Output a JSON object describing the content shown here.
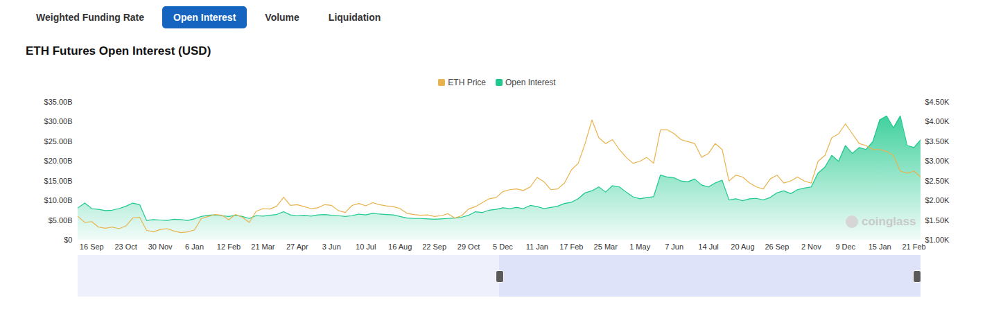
{
  "tabs": [
    "Weighted Funding Rate",
    "Open Interest",
    "Volume",
    "Liquidation"
  ],
  "active_tab": "Open Interest",
  "watermark": "coinglass",
  "chart_data": {
    "type": "line",
    "title": "ETH Futures Open Interest (USD)",
    "legend": "top",
    "grid": false,
    "categories": [
      null,
      null,
      "16 Sep",
      null,
      null,
      null,
      null,
      "23 Oct",
      null,
      null,
      null,
      null,
      "30 Nov",
      null,
      null,
      null,
      null,
      "6 Jan",
      null,
      null,
      null,
      null,
      "12 Feb",
      null,
      null,
      null,
      null,
      "21 Mar",
      null,
      null,
      null,
      null,
      "27 Apr",
      null,
      null,
      null,
      null,
      "3 Jun",
      null,
      null,
      null,
      null,
      "10 Jul",
      null,
      null,
      null,
      null,
      "16 Aug",
      null,
      null,
      null,
      null,
      "22 Sep",
      null,
      null,
      null,
      null,
      "29 Oct",
      null,
      null,
      null,
      null,
      "5 Dec",
      null,
      null,
      null,
      null,
      "11 Jan",
      null,
      null,
      null,
      null,
      "17 Feb",
      null,
      null,
      null,
      null,
      "25 Mar",
      null,
      null,
      null,
      null,
      "1 May",
      null,
      null,
      null,
      null,
      "7 Jun",
      null,
      null,
      null,
      null,
      "14 Jul",
      null,
      null,
      null,
      null,
      "20 Aug",
      null,
      null,
      null,
      null,
      "26 Sep",
      null,
      null,
      null,
      null,
      "2 Nov",
      null,
      null,
      null,
      null,
      "9 Dec",
      null,
      null,
      null,
      null,
      "15 Jan",
      null,
      null,
      null,
      null,
      "21 Feb",
      null
    ],
    "series": [
      {
        "name": "ETH Price",
        "color": "#e9b24c",
        "type": "line",
        "axis": "y2",
        "values": [
          1600,
          1450,
          1470,
          1330,
          1300,
          1330,
          1290,
          1360,
          1560,
          1580,
          1250,
          1210,
          1270,
          1290,
          1230,
          1190,
          1210,
          1260,
          1550,
          1600,
          1650,
          1630,
          1520,
          1650,
          1580,
          1450,
          1730,
          1800,
          1790,
          1860,
          2090,
          1880,
          1900,
          1850,
          1800,
          1820,
          1900,
          1880,
          1750,
          1700,
          1880,
          1930,
          1870,
          1950,
          1900,
          1870,
          1850,
          1800,
          1680,
          1650,
          1630,
          1640,
          1600,
          1620,
          1670,
          1560,
          1620,
          1790,
          1850,
          1950,
          2050,
          2080,
          2230,
          2280,
          2300,
          2260,
          2350,
          2590,
          2480,
          2280,
          2300,
          2450,
          2780,
          2950,
          3450,
          4050,
          3600,
          3450,
          3550,
          3300,
          3100,
          2950,
          3000,
          3100,
          2950,
          3800,
          3800,
          3700,
          3550,
          3500,
          3450,
          3100,
          3200,
          3450,
          3300,
          2500,
          2650,
          2600,
          2450,
          2350,
          2300,
          2550,
          2650,
          2450,
          2500,
          2600,
          2500,
          2450,
          3000,
          3150,
          3600,
          3700,
          3950,
          3700,
          3450,
          3400,
          3300,
          3300,
          3250,
          3150,
          2750,
          2700,
          2750,
          2600
        ]
      },
      {
        "name": "Open Interest",
        "color": "#1fc98d",
        "type": "area",
        "values": [
          8.2,
          9.4,
          8.0,
          7.8,
          7.5,
          7.6,
          8.0,
          8.6,
          9.4,
          9.0,
          5.0,
          5.2,
          5.1,
          5.0,
          5.3,
          5.2,
          5.0,
          5.4,
          6.0,
          6.3,
          6.4,
          6.2,
          6.0,
          6.3,
          6.0,
          5.5,
          6.2,
          6.1,
          6.3,
          6.5,
          7.2,
          6.4,
          6.2,
          6.3,
          6.1,
          6.4,
          6.5,
          6.3,
          6.2,
          6.0,
          6.2,
          6.6,
          6.4,
          6.8,
          6.6,
          6.5,
          6.4,
          6.0,
          5.6,
          5.5,
          5.5,
          5.4,
          5.3,
          5.4,
          5.5,
          5.6,
          5.8,
          6.3,
          7.2,
          7.0,
          7.6,
          7.8,
          8.2,
          8.0,
          8.3,
          8.0,
          8.8,
          8.5,
          8.0,
          8.3,
          8.6,
          9.3,
          9.6,
          10.5,
          12.0,
          12.5,
          13.5,
          12.2,
          13.8,
          13.5,
          12.2,
          11.0,
          10.5,
          10.8,
          11.0,
          16.5,
          16.0,
          15.8,
          15.0,
          14.8,
          15.5,
          14.0,
          13.5,
          14.5,
          15.2,
          10.2,
          10.5,
          10.0,
          10.5,
          10.6,
          10.2,
          10.8,
          12.0,
          12.5,
          11.8,
          12.8,
          13.2,
          13.5,
          17.0,
          18.5,
          21.5,
          20.0,
          24.0,
          22.0,
          23.5,
          23.0,
          25.0,
          30.5,
          31.5,
          28.5,
          31.5,
          24.0,
          23.5,
          25.5
        ]
      }
    ],
    "ylim": [
      0,
      35
    ],
    "yticks": [
      {
        "value": 0,
        "label": "$0"
      },
      {
        "value": 5,
        "label": "$5.00B"
      },
      {
        "value": 10,
        "label": "$10.00B"
      },
      {
        "value": 15,
        "label": "$15.00B"
      },
      {
        "value": 20,
        "label": "$20.00B"
      },
      {
        "value": 25,
        "label": "$25.00B"
      },
      {
        "value": 30,
        "label": "$30.00B"
      },
      {
        "value": 35,
        "label": "$35.00B"
      }
    ],
    "y2lim": [
      1000,
      4500
    ],
    "y2ticks": [
      {
        "value": 1000,
        "label": "$1.00K"
      },
      {
        "value": 1500,
        "label": "$1.50K"
      },
      {
        "value": 2000,
        "label": "$2.00K"
      },
      {
        "value": 2500,
        "label": "$2.50K"
      },
      {
        "value": 3000,
        "label": "$3.00K"
      },
      {
        "value": 3500,
        "label": "$3.50K"
      },
      {
        "value": 4000,
        "label": "$4.00K"
      },
      {
        "value": 4500,
        "label": "$4.50K"
      }
    ]
  }
}
